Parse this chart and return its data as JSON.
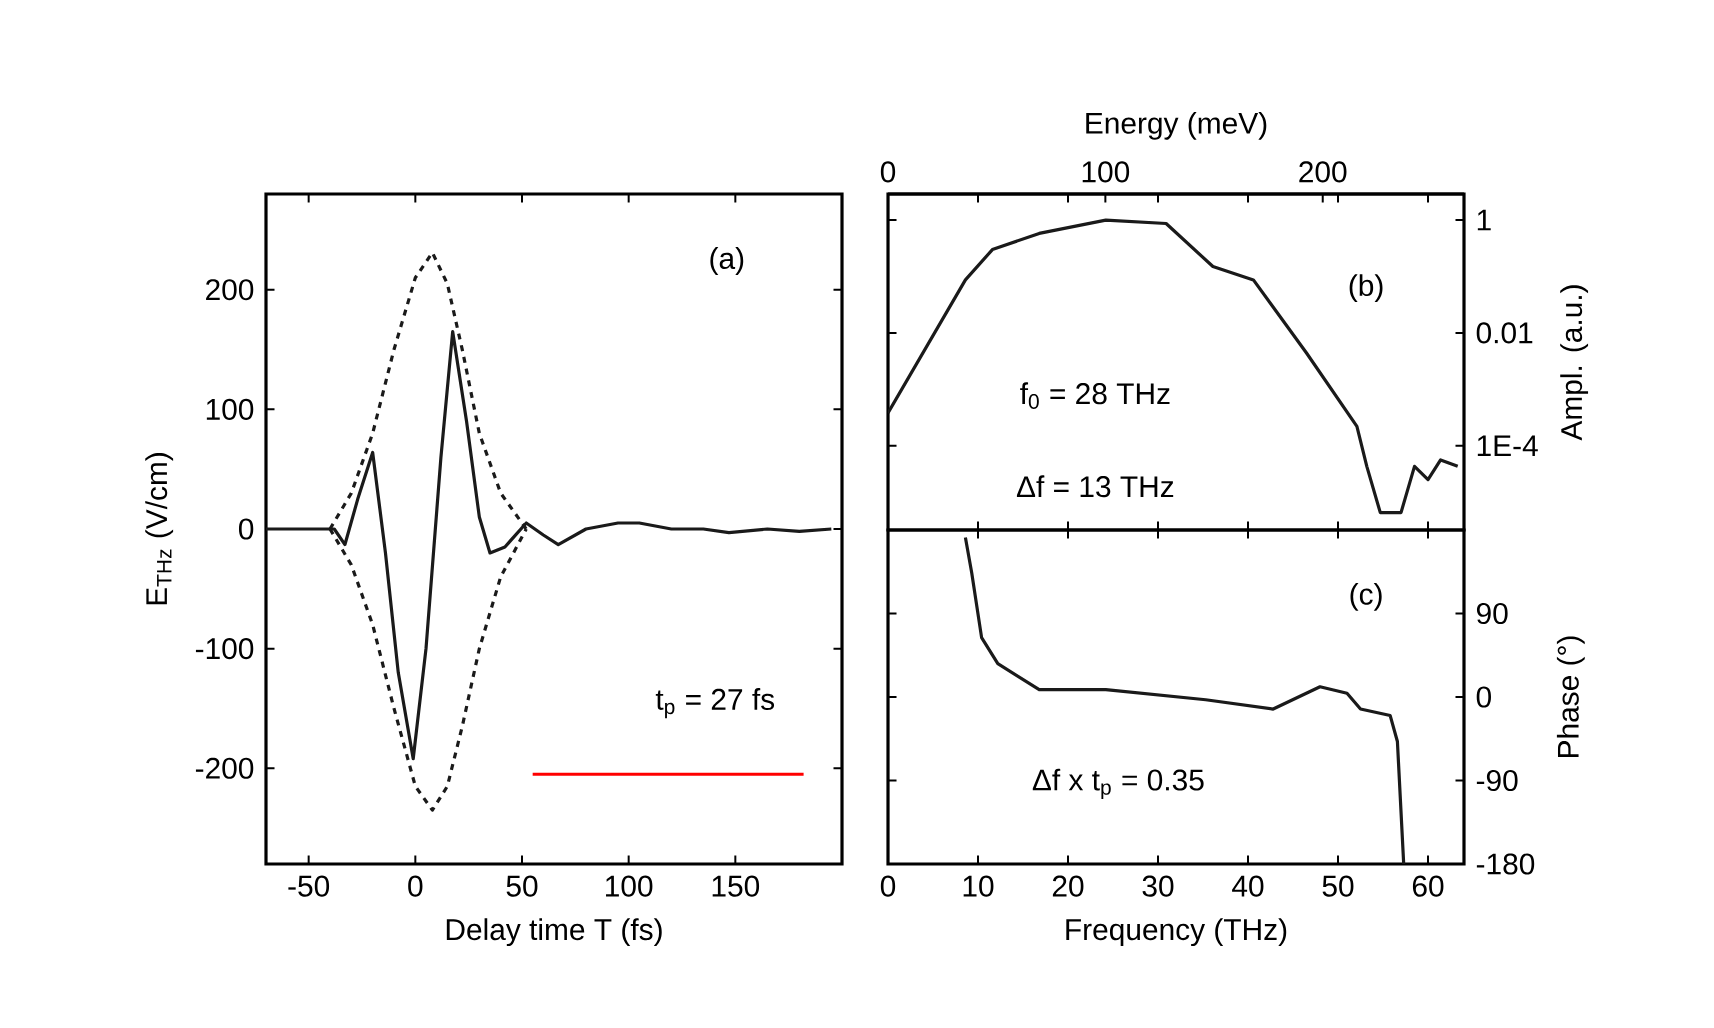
{
  "chart_data": [
    {
      "type": "line",
      "xlabel": "Delay time T (fs)",
      "ylabel": "E$_{THz}$ (V/cm)",
      "xlim": [
        -70,
        200
      ],
      "ylim": [
        -280,
        280
      ],
      "xticks": [
        -50,
        0,
        50,
        100,
        150
      ],
      "yticks": [
        -200,
        -100,
        0,
        100,
        200
      ],
      "annotations": [
        "(a)",
        "t$_{p}$ = 27 fs"
      ],
      "series": [
        {
          "color": "#1a1a1a",
          "line_style": "solid",
          "x": [
            -70,
            -45,
            -38,
            -33,
            -27,
            -20,
            -14,
            -8,
            -1,
            5,
            12,
            17.5,
            24,
            30,
            35,
            42,
            52,
            60,
            67,
            80,
            95,
            105,
            120,
            135,
            147,
            165,
            180,
            195
          ],
          "values": [
            0,
            0,
            0,
            -13,
            25,
            64,
            -20,
            -120,
            -192,
            -100,
            60,
            165,
            90,
            10,
            -20,
            -15,
            5,
            -5,
            -13,
            0,
            5,
            5,
            0,
            0,
            -3,
            0,
            -2,
            0
          ]
        },
        {
          "color": "#1a1a1a",
          "line_style": "dashed",
          "x": [
            -40,
            -30,
            -20,
            -10,
            0,
            8,
            15,
            22,
            30,
            40,
            52
          ],
          "values": [
            0,
            30,
            80,
            150,
            210,
            231,
            205,
            150,
            80,
            30,
            0
          ]
        },
        {
          "color": "#1a1a1a",
          "line_style": "dashed",
          "x": [
            -40,
            -30,
            -20,
            -10,
            0,
            8,
            15,
            22,
            30,
            40,
            52
          ],
          "values": [
            0,
            -30,
            -80,
            -150,
            -215,
            -235,
            -215,
            -165,
            -100,
            -40,
            0
          ]
        },
        {
          "color": "#ff0000",
          "line_style": "solid",
          "x": [
            55,
            182
          ],
          "values": [
            -205,
            -205
          ]
        }
      ]
    },
    {
      "type": "line",
      "ylabel": "Ampl. (a.u.)",
      "x2label": "Energy (meV)",
      "log": "y",
      "xlim": [
        0,
        64
      ],
      "ylim": [
        3.2e-06,
        2.9
      ],
      "x2lim": [
        0,
        265
      ],
      "x2ticks": [
        0,
        100,
        200
      ],
      "yticks": [
        1,
        0.01,
        {
          "value": 0.0001,
          "label": "1E-4"
        }
      ],
      "tick_labels": "y",
      "annotations": [
        "(b)",
        "f$_{0}$ = 28 THz",
        "Δf = 13 THz"
      ],
      "series": [
        {
          "color": "#1a1a1a",
          "line_style": "solid",
          "x": [
            0,
            8.6,
            11.6,
            16.8,
            24.2,
            30.9,
            36.1,
            40.6,
            46.5,
            52.1,
            53.2,
            54.7,
            57,
            58.5,
            60,
            61.4,
            63.3
          ],
          "values": [
            0.00038,
            0.087,
            0.3,
            0.58,
            1,
            0.87,
            0.15,
            0.087,
            0.0044,
            0.00022,
            4.3e-05,
            6.5e-06,
            6.5e-06,
            4.3e-05,
            2.5e-05,
            5.6e-05,
            4.3e-05
          ]
        }
      ]
    },
    {
      "type": "line",
      "xlabel": "Frequency (THz)",
      "ylabel": "Phase (°)",
      "xlim": [
        0,
        64
      ],
      "ylim": [
        -180,
        180
      ],
      "xticks": [
        0,
        10,
        20,
        30,
        40,
        50,
        60
      ],
      "yticks": [
        -180,
        -90,
        0,
        90
      ],
      "annotations": [
        "(c)",
        "Δf x t$_{p}$ = 0.35"
      ],
      "series": [
        {
          "color": "#1a1a1a",
          "line_style": "solid",
          "x": [
            8.6,
            9.3,
            10.4,
            12.2,
            16.8,
            24.2,
            35.3,
            42.8,
            48,
            51,
            52.5,
            55.8,
            56.6,
            57.3
          ],
          "values": [
            172,
            134,
            64,
            36,
            8,
            8,
            -3,
            -13,
            11,
            4,
            -13,
            -20,
            -48,
            -180
          ]
        }
      ]
    }
  ]
}
